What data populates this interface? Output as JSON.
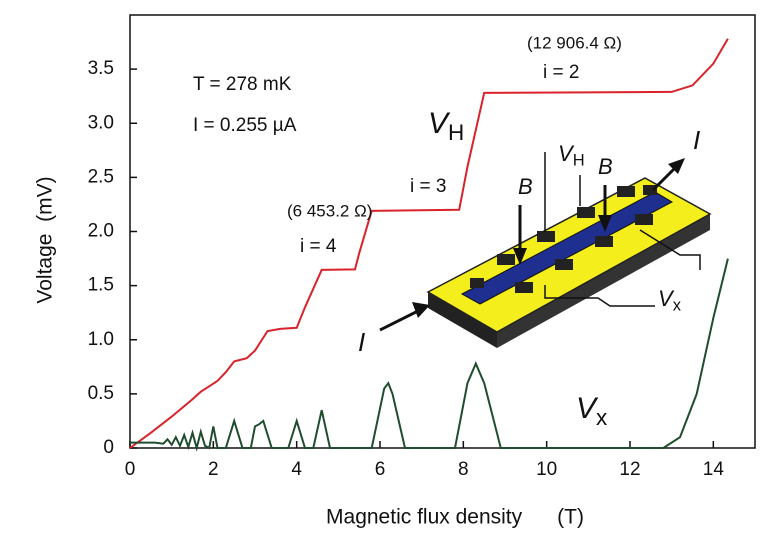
{
  "chart_data": {
    "type": "line",
    "xlabel": "Magnetic flux density      (T)",
    "ylabel": "Voltage  (mV)",
    "xlim": [
      0,
      15
    ],
    "ylim": [
      0,
      4
    ],
    "xticks": [
      0,
      2,
      4,
      6,
      8,
      10,
      12,
      14
    ],
    "yticks": [
      0,
      0.5,
      {
        "value": 1,
        "label": "1.0"
      },
      1.5,
      {
        "value": 2,
        "label": "2.0"
      },
      2.5,
      {
        "value": 3,
        "label": "3.0"
      },
      3.5
    ],
    "series": [
      {
        "name": {
          "text": "V",
          "sub": "H"
        },
        "color": "#d8232a",
        "x": [
          0,
          0.5,
          1.0,
          1.5,
          1.7,
          1.9,
          2.1,
          2.3,
          2.5,
          2.8,
          3.0,
          3.3,
          3.6,
          4.0,
          4.2,
          4.6,
          5.4,
          5.5,
          5.8,
          7.9,
          8.1,
          8.5,
          13.0,
          13.5,
          14.0,
          14.35
        ],
        "values": [
          0,
          0.14,
          0.29,
          0.45,
          0.52,
          0.57,
          0.62,
          0.7,
          0.8,
          0.83,
          0.9,
          1.08,
          1.1,
          1.11,
          1.3,
          1.645,
          1.65,
          1.8,
          2.19,
          2.2,
          2.6,
          3.28,
          3.29,
          3.35,
          3.55,
          3.78
        ]
      },
      {
        "name": {
          "text": "V",
          "sub": "x"
        },
        "color": "#1f4d2e",
        "x": [
          0,
          0.3,
          0.6,
          0.8,
          0.9,
          1.0,
          1.1,
          1.2,
          1.3,
          1.4,
          1.5,
          1.6,
          1.7,
          1.8,
          1.9,
          2.0,
          2.1,
          2.3,
          2.5,
          2.7,
          2.9,
          3.0,
          3.1,
          3.2,
          3.4,
          3.8,
          4.0,
          4.2,
          4.4,
          4.6,
          4.8,
          5.8,
          6.1,
          6.2,
          6.3,
          6.6,
          7.8,
          8.1,
          8.3,
          8.5,
          8.9,
          12.8,
          13.2,
          13.6,
          14.0,
          14.35
        ],
        "values": [
          0.05,
          0.05,
          0.05,
          0.04,
          0.08,
          0.03,
          0.1,
          0.02,
          0.12,
          0.01,
          0.14,
          0.0,
          0.15,
          0.02,
          0.0,
          0.2,
          0.0,
          0.0,
          0.25,
          0.0,
          0.0,
          0.2,
          0.22,
          0.25,
          0.0,
          0.0,
          0.25,
          0.0,
          0.0,
          0.35,
          0.0,
          0.0,
          0.55,
          0.6,
          0.5,
          0.0,
          0.0,
          0.6,
          0.78,
          0.6,
          0.0,
          0.0,
          0.1,
          0.5,
          1.2,
          1.75
        ]
      }
    ],
    "annotations": [
      {
        "text": "T = 278 mK",
        "color": "#111111"
      },
      {
        "text": "I = 0.255 µA",
        "color": "#111111"
      },
      {
        "text": "(12 906.4 Ω)",
        "color": "#1c1c5c"
      },
      {
        "text": "i = 2",
        "color": "#111111"
      },
      {
        "text": "i = 3",
        "color": "#111111"
      },
      {
        "text": "(6 453.2 Ω)",
        "color": "#1c1c5c"
      },
      {
        "text": "i = 4",
        "color": "#111111"
      }
    ],
    "inset_labels": [
      {
        "text": "I",
        "color": "#111111"
      },
      {
        "text": "I",
        "color": "#111111"
      },
      {
        "text": "V",
        "sub": "H",
        "color": "#d8232a"
      },
      {
        "text": "B",
        "color": "#1c1c5c"
      },
      {
        "text": "B",
        "color": "#1c1c5c"
      },
      {
        "text": "V",
        "sub": "x",
        "color": "#1f4d2e"
      }
    ]
  }
}
